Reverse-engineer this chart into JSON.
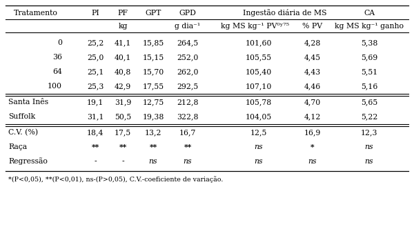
{
  "footnote": "*(P<0,05), **(P<0,01), ns-(P>0,05), C.V.-coeficiente de variação.",
  "rows": [
    [
      "0",
      "25,2",
      "41,1",
      "15,85",
      "264,5",
      "101,60",
      "4,28",
      "5,38"
    ],
    [
      "36",
      "25,0",
      "40,1",
      "15,15",
      "252,0",
      "105,55",
      "4,45",
      "5,69"
    ],
    [
      "64",
      "25,1",
      "40,8",
      "15,70",
      "262,0",
      "105,40",
      "4,43",
      "5,51"
    ],
    [
      "100",
      "25,3",
      "42,9",
      "17,55",
      "292,5",
      "107,10",
      "4,46",
      "5,16"
    ],
    [
      "Santa Inês",
      "19,1",
      "31,9",
      "12,75",
      "212,8",
      "105,78",
      "4,70",
      "5,65"
    ],
    [
      "Suffolk",
      "31,1",
      "50,5",
      "19,38",
      "322,8",
      "104,05",
      "4,12",
      "5,22"
    ],
    [
      "C.V. (%)",
      "18,4",
      "17,5",
      "13,2",
      "16,7",
      "12,5",
      "16,9",
      "12,3"
    ],
    [
      "Raça",
      "**",
      "**",
      "**",
      "**",
      "ns",
      "*",
      "ns"
    ],
    [
      "Regressão",
      "-",
      "-",
      "ns",
      "ns",
      "ns",
      "ns",
      "ns"
    ]
  ],
  "background_color": "#ffffff",
  "text_color": "#000000",
  "font_size": 7.8
}
